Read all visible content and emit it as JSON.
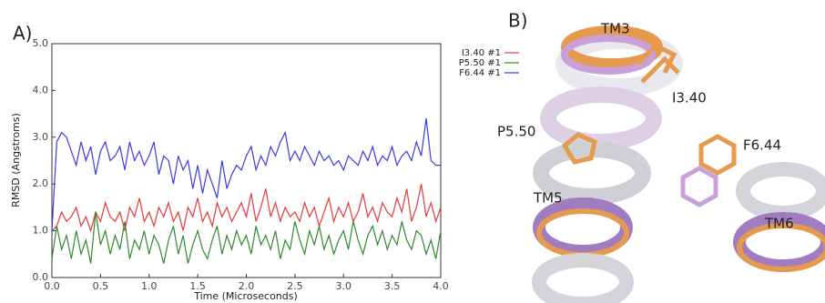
{
  "chart_data": {
    "type": "line",
    "panel_label": "A)",
    "xlabel": "Time (Microseconds)",
    "ylabel": "RMSD (Angstroms)",
    "x": [
      0,
      0.05,
      0.1,
      0.15,
      0.2,
      0.25,
      0.3,
      0.35,
      0.4,
      0.45,
      0.5,
      0.55,
      0.6,
      0.65,
      0.7,
      0.75,
      0.8,
      0.85,
      0.9,
      0.95,
      1,
      1.05,
      1.1,
      1.15,
      1.2,
      1.25,
      1.3,
      1.35,
      1.4,
      1.45,
      1.5,
      1.55,
      1.6,
      1.65,
      1.7,
      1.75,
      1.8,
      1.85,
      1.9,
      1.95,
      2,
      2.05,
      2.1,
      2.15,
      2.2,
      2.25,
      2.3,
      2.35,
      2.4,
      2.45,
      2.5,
      2.55,
      2.6,
      2.65,
      2.7,
      2.75,
      2.8,
      2.85,
      2.9,
      2.95,
      3,
      3.05,
      3.1,
      3.15,
      3.2,
      3.25,
      3.3,
      3.35,
      3.4,
      3.45,
      3.5,
      3.55,
      3.6,
      3.65,
      3.7,
      3.75,
      3.8,
      3.85,
      3.9,
      3.95,
      4
    ],
    "series": [
      {
        "name": "I3.40 #1",
        "color": "#e8383c",
        "values": [
          1.0,
          1.1,
          1.4,
          1.2,
          1.3,
          1.5,
          1.1,
          1.3,
          1.0,
          1.4,
          1.2,
          1.6,
          1.3,
          1.2,
          1.4,
          1.0,
          1.5,
          1.3,
          1.7,
          1.2,
          1.4,
          1.1,
          1.5,
          1.3,
          1.6,
          1.2,
          1.4,
          1.0,
          1.5,
          1.3,
          1.7,
          1.2,
          1.4,
          1.1,
          1.6,
          1.3,
          1.5,
          1.2,
          1.4,
          1.6,
          1.3,
          1.8,
          1.2,
          1.5,
          1.9,
          1.3,
          1.6,
          1.2,
          1.5,
          1.3,
          1.4,
          1.2,
          1.6,
          1.3,
          1.5,
          1.1,
          1.4,
          1.7,
          1.2,
          1.5,
          1.3,
          1.6,
          1.2,
          1.4,
          1.8,
          1.3,
          1.5,
          1.2,
          1.6,
          1.4,
          1.3,
          1.7,
          1.4,
          1.9,
          1.2,
          1.5,
          2.0,
          1.3,
          1.6,
          1.2,
          1.5
        ]
      },
      {
        "name": "P5.50 #1",
        "color": "#2e8b2e",
        "values": [
          0.4,
          1.1,
          0.6,
          0.9,
          0.4,
          1.0,
          0.5,
          0.8,
          0.3,
          1.4,
          0.7,
          1.0,
          0.5,
          0.9,
          0.6,
          1.2,
          0.4,
          0.8,
          0.6,
          1.0,
          0.5,
          0.9,
          0.7,
          0.3,
          0.8,
          1.1,
          0.5,
          0.9,
          0.3,
          0.7,
          1.0,
          0.6,
          0.4,
          0.8,
          1.1,
          0.5,
          0.9,
          0.6,
          1.0,
          0.7,
          0.9,
          0.5,
          1.1,
          0.7,
          0.9,
          0.6,
          1.0,
          0.4,
          0.8,
          0.6,
          1.2,
          0.8,
          0.5,
          1.0,
          0.7,
          1.1,
          0.6,
          0.9,
          0.5,
          0.8,
          1.0,
          0.6,
          1.2,
          0.8,
          0.5,
          0.9,
          1.1,
          0.7,
          1.0,
          0.6,
          0.9,
          0.7,
          1.2,
          0.8,
          0.6,
          1.0,
          0.9,
          0.5,
          0.8,
          0.4,
          1.0
        ]
      },
      {
        "name": "F6.44 #1",
        "color": "#3a3ae8",
        "values": [
          1.0,
          2.9,
          3.1,
          3.0,
          2.7,
          2.4,
          2.9,
          2.5,
          2.8,
          2.2,
          2.7,
          2.9,
          2.5,
          2.6,
          2.8,
          2.3,
          2.9,
          2.5,
          2.7,
          2.4,
          2.6,
          2.9,
          2.2,
          2.6,
          2.5,
          2.0,
          2.6,
          2.3,
          2.5,
          1.9,
          2.4,
          1.8,
          2.3,
          2.0,
          1.7,
          2.5,
          1.9,
          2.2,
          2.4,
          2.3,
          2.6,
          2.8,
          2.3,
          2.6,
          2.4,
          2.8,
          2.6,
          2.9,
          3.1,
          2.5,
          2.7,
          2.5,
          2.8,
          2.6,
          2.4,
          2.7,
          2.5,
          2.6,
          2.4,
          2.5,
          2.3,
          2.6,
          2.5,
          2.4,
          2.7,
          2.5,
          2.8,
          2.4,
          2.6,
          2.5,
          2.8,
          2.4,
          2.6,
          2.7,
          2.5,
          2.9,
          2.6,
          3.4,
          2.5,
          2.4,
          2.4
        ]
      }
    ],
    "xlim": [
      0,
      4
    ],
    "ylim": [
      0,
      5
    ],
    "xticks": [
      {
        "value": 0,
        "label": "0.0"
      },
      {
        "value": 0.5,
        "label": "0.5"
      },
      {
        "value": 1,
        "label": "1.0"
      },
      {
        "value": 1.5,
        "label": "1.5"
      },
      {
        "value": 2,
        "label": "2.0"
      },
      {
        "value": 2.5,
        "label": "2.5"
      },
      {
        "value": 3,
        "label": "3.0"
      },
      {
        "value": 3.5,
        "label": "3.5"
      },
      {
        "value": 4,
        "label": "4.0"
      }
    ],
    "yticks": [
      {
        "value": 0,
        "label": "0.0"
      },
      {
        "value": 1,
        "label": "1.0"
      },
      {
        "value": 2,
        "label": "2.0"
      },
      {
        "value": 3,
        "label": "3.0"
      },
      {
        "value": 4,
        "label": "4.0"
      },
      {
        "value": 5,
        "label": "5.0"
      }
    ],
    "grid": false
  },
  "panel_b": {
    "panel_label": "B)",
    "labels": [
      "TM3",
      "I3.40",
      "P5.50",
      "F6.44",
      "TM5",
      "TM6"
    ]
  }
}
